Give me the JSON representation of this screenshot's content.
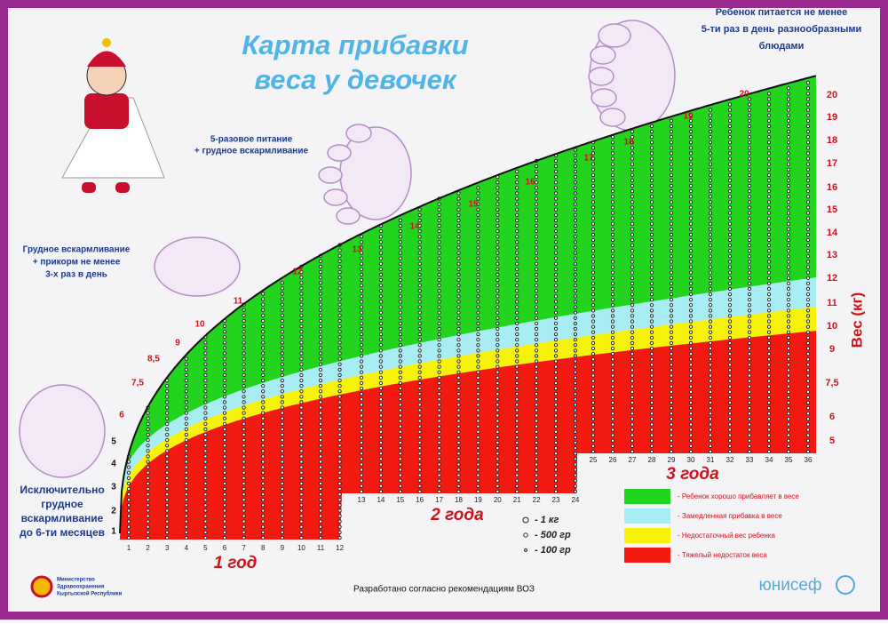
{
  "title": [
    "Карта прибавки",
    "веса у девочек"
  ],
  "notes": {
    "top_right": [
      "Ребенок питается не менее",
      "5-ти раз в день разнообразными",
      "блюдами"
    ],
    "five_meals": [
      "5-разовое питание",
      "+ грудное вскармливание"
    ],
    "complementary": [
      "Грудное вскармливание",
      "+ прикорм не менее",
      "3-х раз в день"
    ],
    "exclusive": [
      "Исключительно",
      "грудное",
      "вскармливание",
      "до 6-ти месяцев"
    ]
  },
  "months": [
    1,
    2,
    3,
    4,
    5,
    6,
    7,
    8,
    9,
    10,
    11,
    12,
    13,
    14,
    15,
    16,
    17,
    18,
    19,
    20,
    21,
    22,
    23,
    24,
    25,
    26,
    27,
    28,
    29,
    30,
    31,
    32,
    33,
    34,
    35,
    36
  ],
  "curve_labels": [
    "1",
    "2",
    "3",
    "4",
    "5",
    "6",
    "7,5",
    "8,5",
    "9",
    "10",
    "11",
    "12",
    "13",
    "14",
    "15",
    "16",
    "17",
    "18",
    "19",
    "20"
  ],
  "weight_axis": {
    "title": "Вес (кг)",
    "labels": [
      "20",
      "19",
      "18",
      "17",
      "16",
      "15",
      "14",
      "13",
      "12",
      "11",
      "10",
      "9",
      "7,5",
      "6",
      "5"
    ]
  },
  "years": [
    "1 год",
    "2 года",
    "3 года"
  ],
  "legend": [
    {
      "label": "- Ребенок хорошо прибавляет в весе",
      "color": "#22d41e"
    },
    {
      "label": "- Замедленная прибавка в весе",
      "color": "#a8ecf4"
    },
    {
      "label": "- Недостаточный вес ребенка",
      "color": "#f7f20a"
    },
    {
      "label": "- Тяжелый недостаток веса",
      "color": "#f21a10"
    }
  ],
  "bead_legend": [
    "- 1 кг",
    "- 500 гр",
    "- 100 гр"
  ],
  "footer": {
    "source": "Разработано согласно рекомендациям ВОЗ",
    "ministry": [
      "Министерство",
      "Здравоохранения",
      "Кыргызской Республики"
    ],
    "unicef": "юнисеф"
  }
}
